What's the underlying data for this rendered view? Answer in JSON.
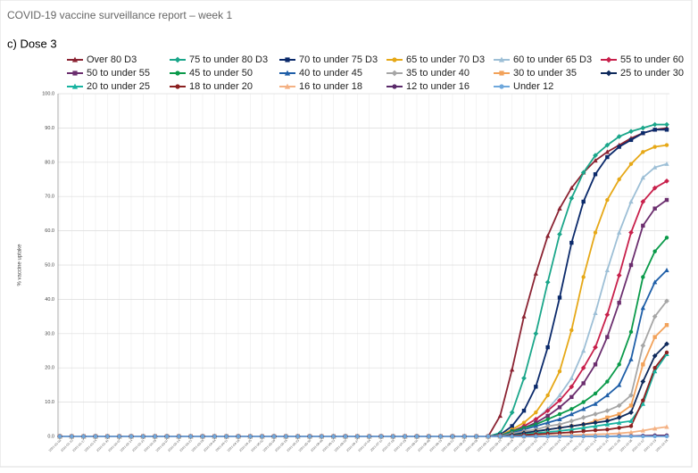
{
  "header": "COVID-19 vaccine surveillance report – week 1",
  "chart_data": {
    "type": "line",
    "title": "c) Dose 3",
    "ylabel": "% vaccine uptake",
    "x": [
      "2021-01-03",
      "2021-01-10",
      "2021-01-17",
      "2021-01-24",
      "2021-01-31",
      "2021-02-07",
      "2021-02-14",
      "2021-02-21",
      "2021-02-28",
      "2021-03-07",
      "2021-03-14",
      "2021-03-21",
      "2021-03-28",
      "2021-04-04",
      "2021-04-11",
      "2021-04-18",
      "2021-04-25",
      "2021-05-02",
      "2021-05-09",
      "2021-05-16",
      "2021-05-23",
      "2021-05-30",
      "2021-06-06",
      "2021-06-13",
      "2021-06-20",
      "2021-06-27",
      "2021-07-04",
      "2021-07-11",
      "2021-07-18",
      "2021-07-25",
      "2021-08-01",
      "2021-08-08",
      "2021-08-15",
      "2021-08-22",
      "2021-08-29",
      "2021-09-05",
      "2021-09-12",
      "2021-09-19",
      "2021-09-26",
      "2021-10-03",
      "2021-10-10",
      "2021-10-17",
      "2021-10-24",
      "2021-10-31",
      "2021-11-07",
      "2021-11-14",
      "2021-11-21",
      "2021-11-28",
      "2021-12-05",
      "2021-12-12",
      "2021-12-19",
      "2021-12-26"
    ],
    "ylim": [
      0,
      100
    ],
    "yticks": [
      {
        "value": 0,
        "label": "0.0"
      },
      {
        "value": 10,
        "label": "10.0"
      },
      {
        "value": 20,
        "label": "20.0"
      },
      {
        "value": 30,
        "label": "30.0"
      },
      {
        "value": 40,
        "label": "40.0"
      },
      {
        "value": 50,
        "label": "50.0"
      },
      {
        "value": 60,
        "label": "60.0"
      },
      {
        "value": 70,
        "label": "70.0"
      },
      {
        "value": 80,
        "label": "80.0"
      },
      {
        "value": 90,
        "label": "90.0"
      },
      {
        "value": 100,
        "label": "100.0"
      }
    ],
    "grid": true,
    "legend": "top",
    "series": [
      {
        "name": "Over 80 D3",
        "color": "#8b2332",
        "marker": "triangle",
        "values": [
          0,
          0,
          0,
          0,
          0,
          0,
          0,
          0,
          0,
          0,
          0,
          0,
          0,
          0,
          0,
          0,
          0,
          0,
          0,
          0,
          0,
          0,
          0,
          0,
          0,
          0,
          0,
          0,
          0,
          0,
          0,
          0,
          0,
          0,
          0,
          0,
          0,
          6,
          19.5,
          35,
          47.5,
          58.5,
          66.5,
          72.5,
          77,
          80.5,
          83,
          85,
          87,
          88.5,
          89.5,
          90
        ]
      },
      {
        "name": "75 to under 80 D3",
        "color": "#1aa68a",
        "marker": "diamond",
        "values": [
          0,
          0,
          0,
          0,
          0,
          0,
          0,
          0,
          0,
          0,
          0,
          0,
          0,
          0,
          0,
          0,
          0,
          0,
          0,
          0,
          0,
          0,
          0,
          0,
          0,
          0,
          0,
          0,
          0,
          0,
          0,
          0,
          0,
          0,
          0,
          0,
          0,
          1,
          7,
          17,
          30,
          45,
          59,
          69.5,
          77,
          82,
          85,
          87.5,
          89,
          90,
          91,
          91
        ]
      },
      {
        "name": "70 to under 75 D3",
        "color": "#0b2a6b",
        "marker": "square",
        "values": [
          0,
          0,
          0,
          0,
          0,
          0,
          0,
          0,
          0,
          0,
          0,
          0,
          0,
          0,
          0,
          0,
          0,
          0,
          0,
          0,
          0,
          0,
          0,
          0,
          0,
          0,
          0,
          0,
          0,
          0,
          0,
          0,
          0,
          0,
          0,
          0,
          0,
          0.5,
          3,
          7.5,
          14.5,
          26,
          40.5,
          56.5,
          68.5,
          76.5,
          81.5,
          84.5,
          86.5,
          88.5,
          89.5,
          89.5
        ]
      },
      {
        "name": "65 to under 70 D3",
        "color": "#e6a817",
        "marker": "circle",
        "values": [
          0,
          0,
          0,
          0,
          0,
          0,
          0,
          0,
          0,
          0,
          0,
          0,
          0,
          0,
          0,
          0,
          0,
          0,
          0,
          0,
          0,
          0,
          0,
          0,
          0,
          0,
          0,
          0,
          0,
          0,
          0,
          0,
          0,
          0,
          0,
          0,
          0,
          0.3,
          2,
          4,
          7,
          12,
          19,
          31,
          46.5,
          59.5,
          69,
          75,
          79.5,
          83,
          84.5,
          85
        ]
      },
      {
        "name": "60 to under 65 D3",
        "color": "#9dbfd6",
        "marker": "triangle",
        "values": [
          0,
          0,
          0,
          0,
          0,
          0,
          0,
          0,
          0,
          0,
          0,
          0,
          0,
          0,
          0,
          0,
          0,
          0,
          0,
          0,
          0,
          0,
          0,
          0,
          0,
          0,
          0,
          0,
          0,
          0,
          0,
          0,
          0,
          0,
          0,
          0,
          0,
          0.3,
          1.5,
          3,
          5,
          8,
          12,
          17,
          25,
          36,
          48.5,
          59.5,
          68.5,
          75.5,
          78.5,
          79.5
        ]
      },
      {
        "name": "55 to under 60",
        "color": "#c8204b",
        "marker": "diamond",
        "values": [
          0,
          0,
          0,
          0,
          0,
          0,
          0,
          0,
          0,
          0,
          0,
          0,
          0,
          0,
          0,
          0,
          0,
          0,
          0,
          0,
          0,
          0,
          0,
          0,
          0,
          0,
          0,
          0,
          0,
          0,
          0,
          0,
          0,
          0,
          0,
          0,
          0,
          0.2,
          1.5,
          3,
          5,
          7.5,
          10.5,
          14.5,
          20,
          26,
          35.5,
          47,
          59.5,
          68.5,
          72.5,
          74.5
        ]
      },
      {
        "name": "50 to under 55",
        "color": "#6b2e6e",
        "marker": "square",
        "values": [
          0,
          0,
          0,
          0,
          0,
          0,
          0,
          0,
          0,
          0,
          0,
          0,
          0,
          0,
          0,
          0,
          0,
          0,
          0,
          0,
          0,
          0,
          0,
          0,
          0,
          0,
          0,
          0,
          0,
          0,
          0,
          0,
          0,
          0,
          0,
          0,
          0,
          0.2,
          1.5,
          2.5,
          4,
          6,
          8.5,
          11.5,
          15.5,
          21,
          29,
          39,
          50,
          61.5,
          66.5,
          69
        ]
      },
      {
        "name": "45 to under 50",
        "color": "#0a9a4a",
        "marker": "circle",
        "values": [
          0,
          0,
          0,
          0,
          0,
          0,
          0,
          0,
          0,
          0,
          0,
          0,
          0,
          0,
          0,
          0,
          0,
          0,
          0,
          0,
          0,
          0,
          0,
          0,
          0,
          0,
          0,
          0,
          0,
          0,
          0,
          0,
          0,
          0,
          0,
          0,
          0,
          0.1,
          1.5,
          2.5,
          3.5,
          5,
          6.5,
          8,
          10,
          12.5,
          16,
          21,
          30.5,
          46.5,
          54,
          58
        ]
      },
      {
        "name": "40 to under 45",
        "color": "#1f5fa8",
        "marker": "triangle",
        "values": [
          0,
          0,
          0,
          0,
          0,
          0,
          0,
          0,
          0,
          0,
          0,
          0,
          0,
          0,
          0,
          0,
          0,
          0,
          0,
          0,
          0,
          0,
          0,
          0,
          0,
          0,
          0,
          0,
          0,
          0,
          0,
          0,
          0,
          0,
          0,
          0,
          0,
          0.1,
          1,
          2,
          3,
          4,
          5,
          6.5,
          8,
          9.5,
          12,
          15,
          22.5,
          37.5,
          45,
          48.5
        ]
      },
      {
        "name": "35 to under 40",
        "color": "#a6a6a6",
        "marker": "diamond",
        "values": [
          0,
          0,
          0,
          0,
          0,
          0,
          0,
          0,
          0,
          0,
          0,
          0,
          0,
          0,
          0,
          0,
          0,
          0,
          0,
          0,
          0,
          0,
          0,
          0,
          0,
          0,
          0,
          0,
          0,
          0,
          0,
          0,
          0,
          0,
          0,
          0,
          0,
          0.1,
          0.8,
          1.5,
          2,
          3,
          3.5,
          4.5,
          5.5,
          6.5,
          7.5,
          9,
          12,
          26.5,
          35,
          39.5
        ]
      },
      {
        "name": "30 to under 35",
        "color": "#f2a25a",
        "marker": "square",
        "values": [
          0,
          0,
          0,
          0,
          0,
          0,
          0,
          0,
          0,
          0,
          0,
          0,
          0,
          0,
          0,
          0,
          0,
          0,
          0,
          0,
          0,
          0,
          0,
          0,
          0,
          0,
          0,
          0,
          0,
          0,
          0,
          0,
          0,
          0,
          0,
          0,
          0,
          0,
          0.5,
          1,
          1.5,
          2,
          2.5,
          3,
          3.5,
          4.5,
          5.5,
          6.5,
          9,
          21,
          29,
          32.5
        ]
      },
      {
        "name": "25 to under 30",
        "color": "#0e2a5c",
        "marker": "diamond",
        "values": [
          0,
          0,
          0,
          0,
          0,
          0,
          0,
          0,
          0,
          0,
          0,
          0,
          0,
          0,
          0,
          0,
          0,
          0,
          0,
          0,
          0,
          0,
          0,
          0,
          0,
          0,
          0,
          0,
          0,
          0,
          0,
          0,
          0,
          0,
          0,
          0,
          0,
          0,
          0.5,
          1,
          1.5,
          2,
          2.5,
          3,
          3.5,
          4,
          4.5,
          5.5,
          7,
          16,
          23.5,
          27
        ]
      },
      {
        "name": "20 to under 25",
        "color": "#18b3a0",
        "marker": "triangle",
        "values": [
          0,
          0,
          0,
          0,
          0,
          0,
          0,
          0,
          0,
          0,
          0,
          0,
          0,
          0,
          0,
          0,
          0,
          0,
          0,
          0,
          0,
          0,
          0,
          0,
          0,
          0,
          0,
          0,
          0,
          0,
          0,
          0,
          0,
          0,
          0,
          0,
          0,
          0,
          0.3,
          0.6,
          1,
          1.3,
          1.6,
          2,
          2.5,
          3,
          3.5,
          4,
          4.5,
          9.5,
          19,
          24
        ]
      },
      {
        "name": "18 to under 20",
        "color": "#8b2020",
        "marker": "circle",
        "values": [
          0,
          0,
          0,
          0,
          0,
          0,
          0,
          0,
          0,
          0,
          0,
          0,
          0,
          0,
          0,
          0,
          0,
          0,
          0,
          0,
          0,
          0,
          0,
          0,
          0,
          0,
          0,
          0,
          0,
          0,
          0,
          0,
          0,
          0,
          0,
          0,
          0,
          0,
          0.2,
          0.4,
          0.6,
          0.8,
          1,
          1.2,
          1.5,
          1.8,
          2,
          2.5,
          3,
          10.5,
          20,
          24.5
        ]
      },
      {
        "name": "16 to under 18",
        "color": "#f4b183",
        "marker": "triangle",
        "values": [
          0,
          0,
          0,
          0,
          0,
          0,
          0,
          0,
          0,
          0,
          0,
          0,
          0,
          0,
          0,
          0,
          0,
          0,
          0,
          0,
          0,
          0,
          0,
          0,
          0,
          0,
          0,
          0,
          0,
          0,
          0,
          0,
          0,
          0,
          0,
          0,
          0,
          0,
          0,
          0,
          0.1,
          0.2,
          0.3,
          0.4,
          0.5,
          0.6,
          0.7,
          0.9,
          1.2,
          1.7,
          2.3,
          2.8
        ]
      },
      {
        "name": "12 to under 16",
        "color": "#5a2a6a",
        "marker": "circle",
        "values": [
          0,
          0,
          0,
          0,
          0,
          0,
          0,
          0,
          0,
          0,
          0,
          0,
          0,
          0,
          0,
          0,
          0,
          0,
          0,
          0,
          0,
          0,
          0,
          0,
          0,
          0,
          0,
          0,
          0,
          0,
          0,
          0,
          0,
          0,
          0,
          0,
          0,
          0,
          0,
          0,
          0,
          0,
          0,
          0,
          0,
          0,
          0,
          0.1,
          0.1,
          0.2,
          0.3,
          0.3
        ]
      },
      {
        "name": "Under 12",
        "color": "#6fa8dc",
        "marker": "circle",
        "values": [
          0,
          0,
          0,
          0,
          0,
          0,
          0,
          0,
          0,
          0,
          0,
          0,
          0,
          0,
          0,
          0,
          0,
          0,
          0,
          0,
          0,
          0,
          0,
          0,
          0,
          0,
          0,
          0,
          0,
          0,
          0,
          0,
          0,
          0,
          0,
          0,
          0,
          0,
          0,
          0,
          0,
          0,
          0,
          0,
          0,
          0,
          0,
          0,
          0,
          0,
          0,
          0
        ]
      }
    ]
  }
}
